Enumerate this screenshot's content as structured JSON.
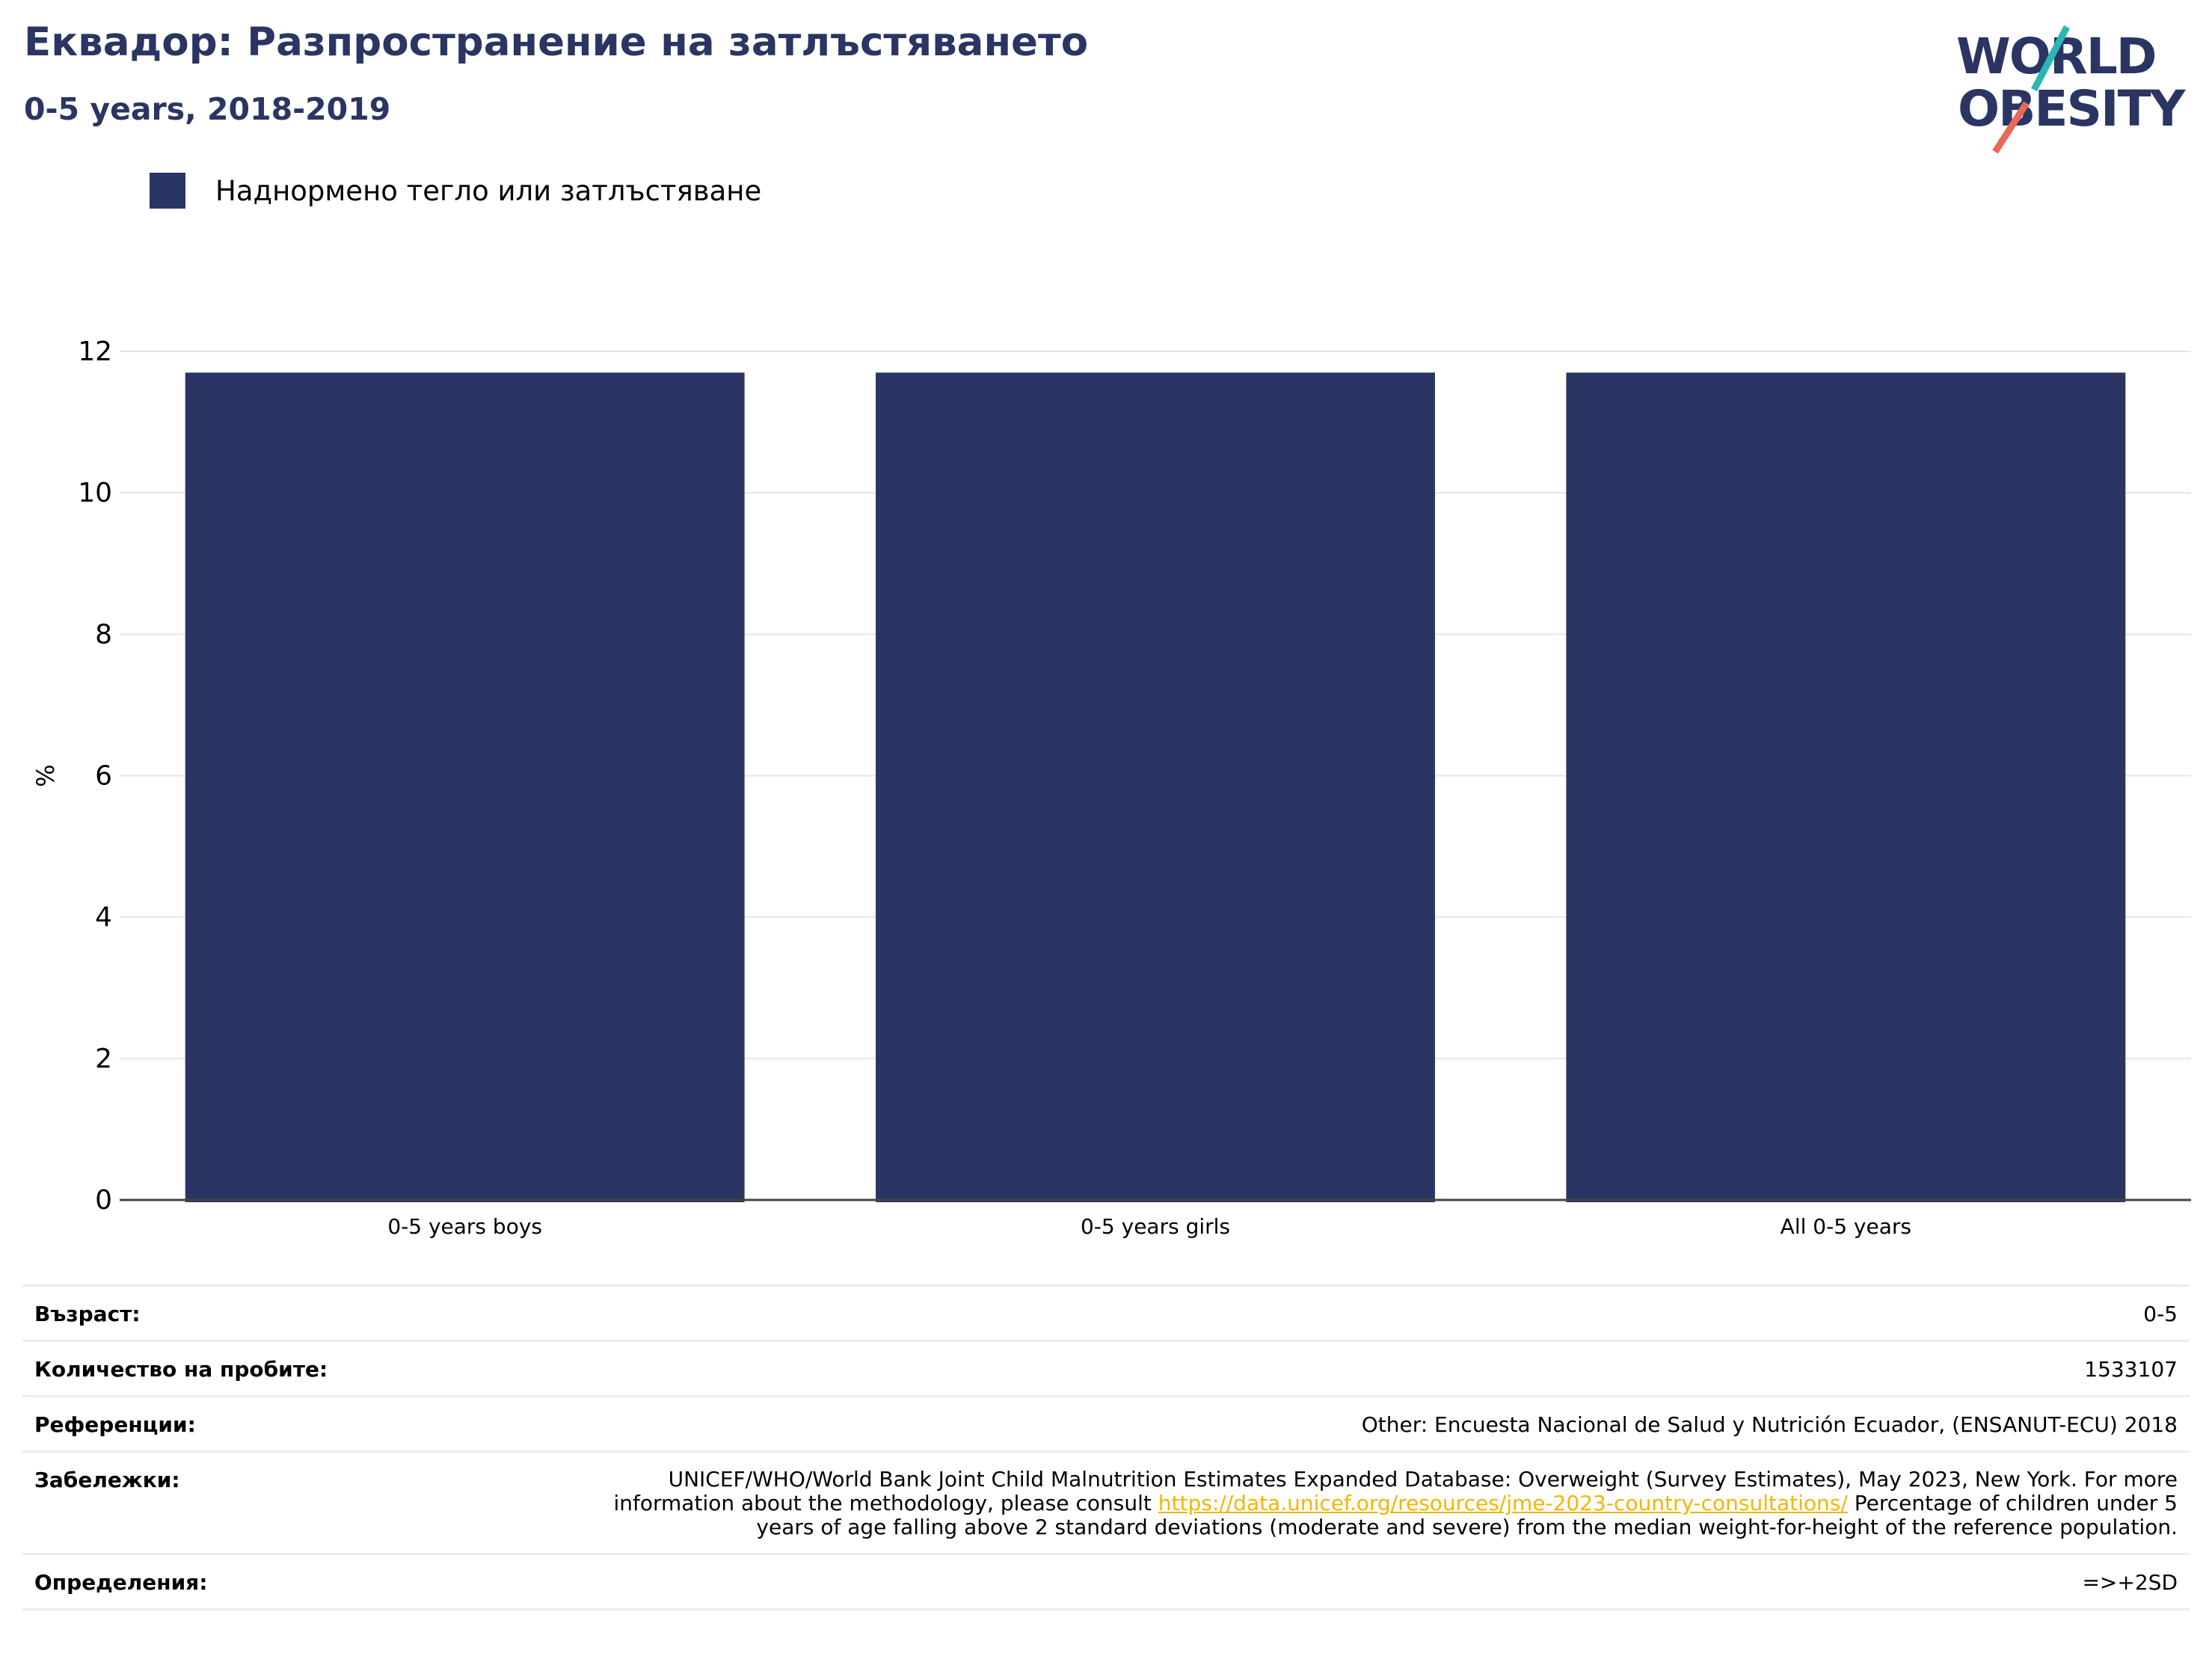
{
  "header": {
    "title": "Еквадор: Разпространение на затлъстяването",
    "subtitle": "0-5 years, 2018-2019"
  },
  "logo": {
    "line1": "WORLD",
    "line2": "OBESITY",
    "colors": {
      "text": "#2a3563",
      "slash_top": "#2bb5b5",
      "slash_bottom": "#e8685a"
    }
  },
  "legend": {
    "label": "Наднормено тегло или затлъстяване",
    "color": "#2a3563"
  },
  "chart_data": {
    "type": "bar",
    "categories": [
      "0-5 years boys",
      "0-5 years girls",
      "All 0-5 years"
    ],
    "series": [
      {
        "name": "Наднормено тегло или затлъстяване",
        "values": [
          11.7,
          11.7,
          11.7
        ],
        "color": "#2a3563"
      }
    ],
    "ylabel": "%",
    "ylim": [
      0,
      12
    ],
    "yticks": [
      0,
      2,
      4,
      6,
      8,
      10,
      12
    ],
    "grid": true,
    "legend_position": "top-left"
  },
  "info": {
    "age_label": "Възраст:",
    "age_value": "0-5",
    "sample_label": "Количество на пробите:",
    "sample_value": "1533107",
    "refs_label": "Референции:",
    "refs_value": "Other: Encuesta Nacional de Salud y Nutrición Ecuador, (ENSANUT-ECU) 2018",
    "notes_label": "Забележки:",
    "notes_before": "UNICEF/WHO/World Bank Joint Child Malnutrition Estimates Expanded Database: Overweight (Survey Estimates), May 2023, New York. For more information about the methodology, please consult ",
    "notes_link": "https://data.unicef.org/resources/jme-2023-country-consultations/",
    "notes_after": " Percentage of children under 5 years of age falling above 2 standard deviations (moderate and severe) from the median weight-for-height of the reference population.",
    "defs_label": "Определения:",
    "defs_value": "=>+2SD"
  }
}
